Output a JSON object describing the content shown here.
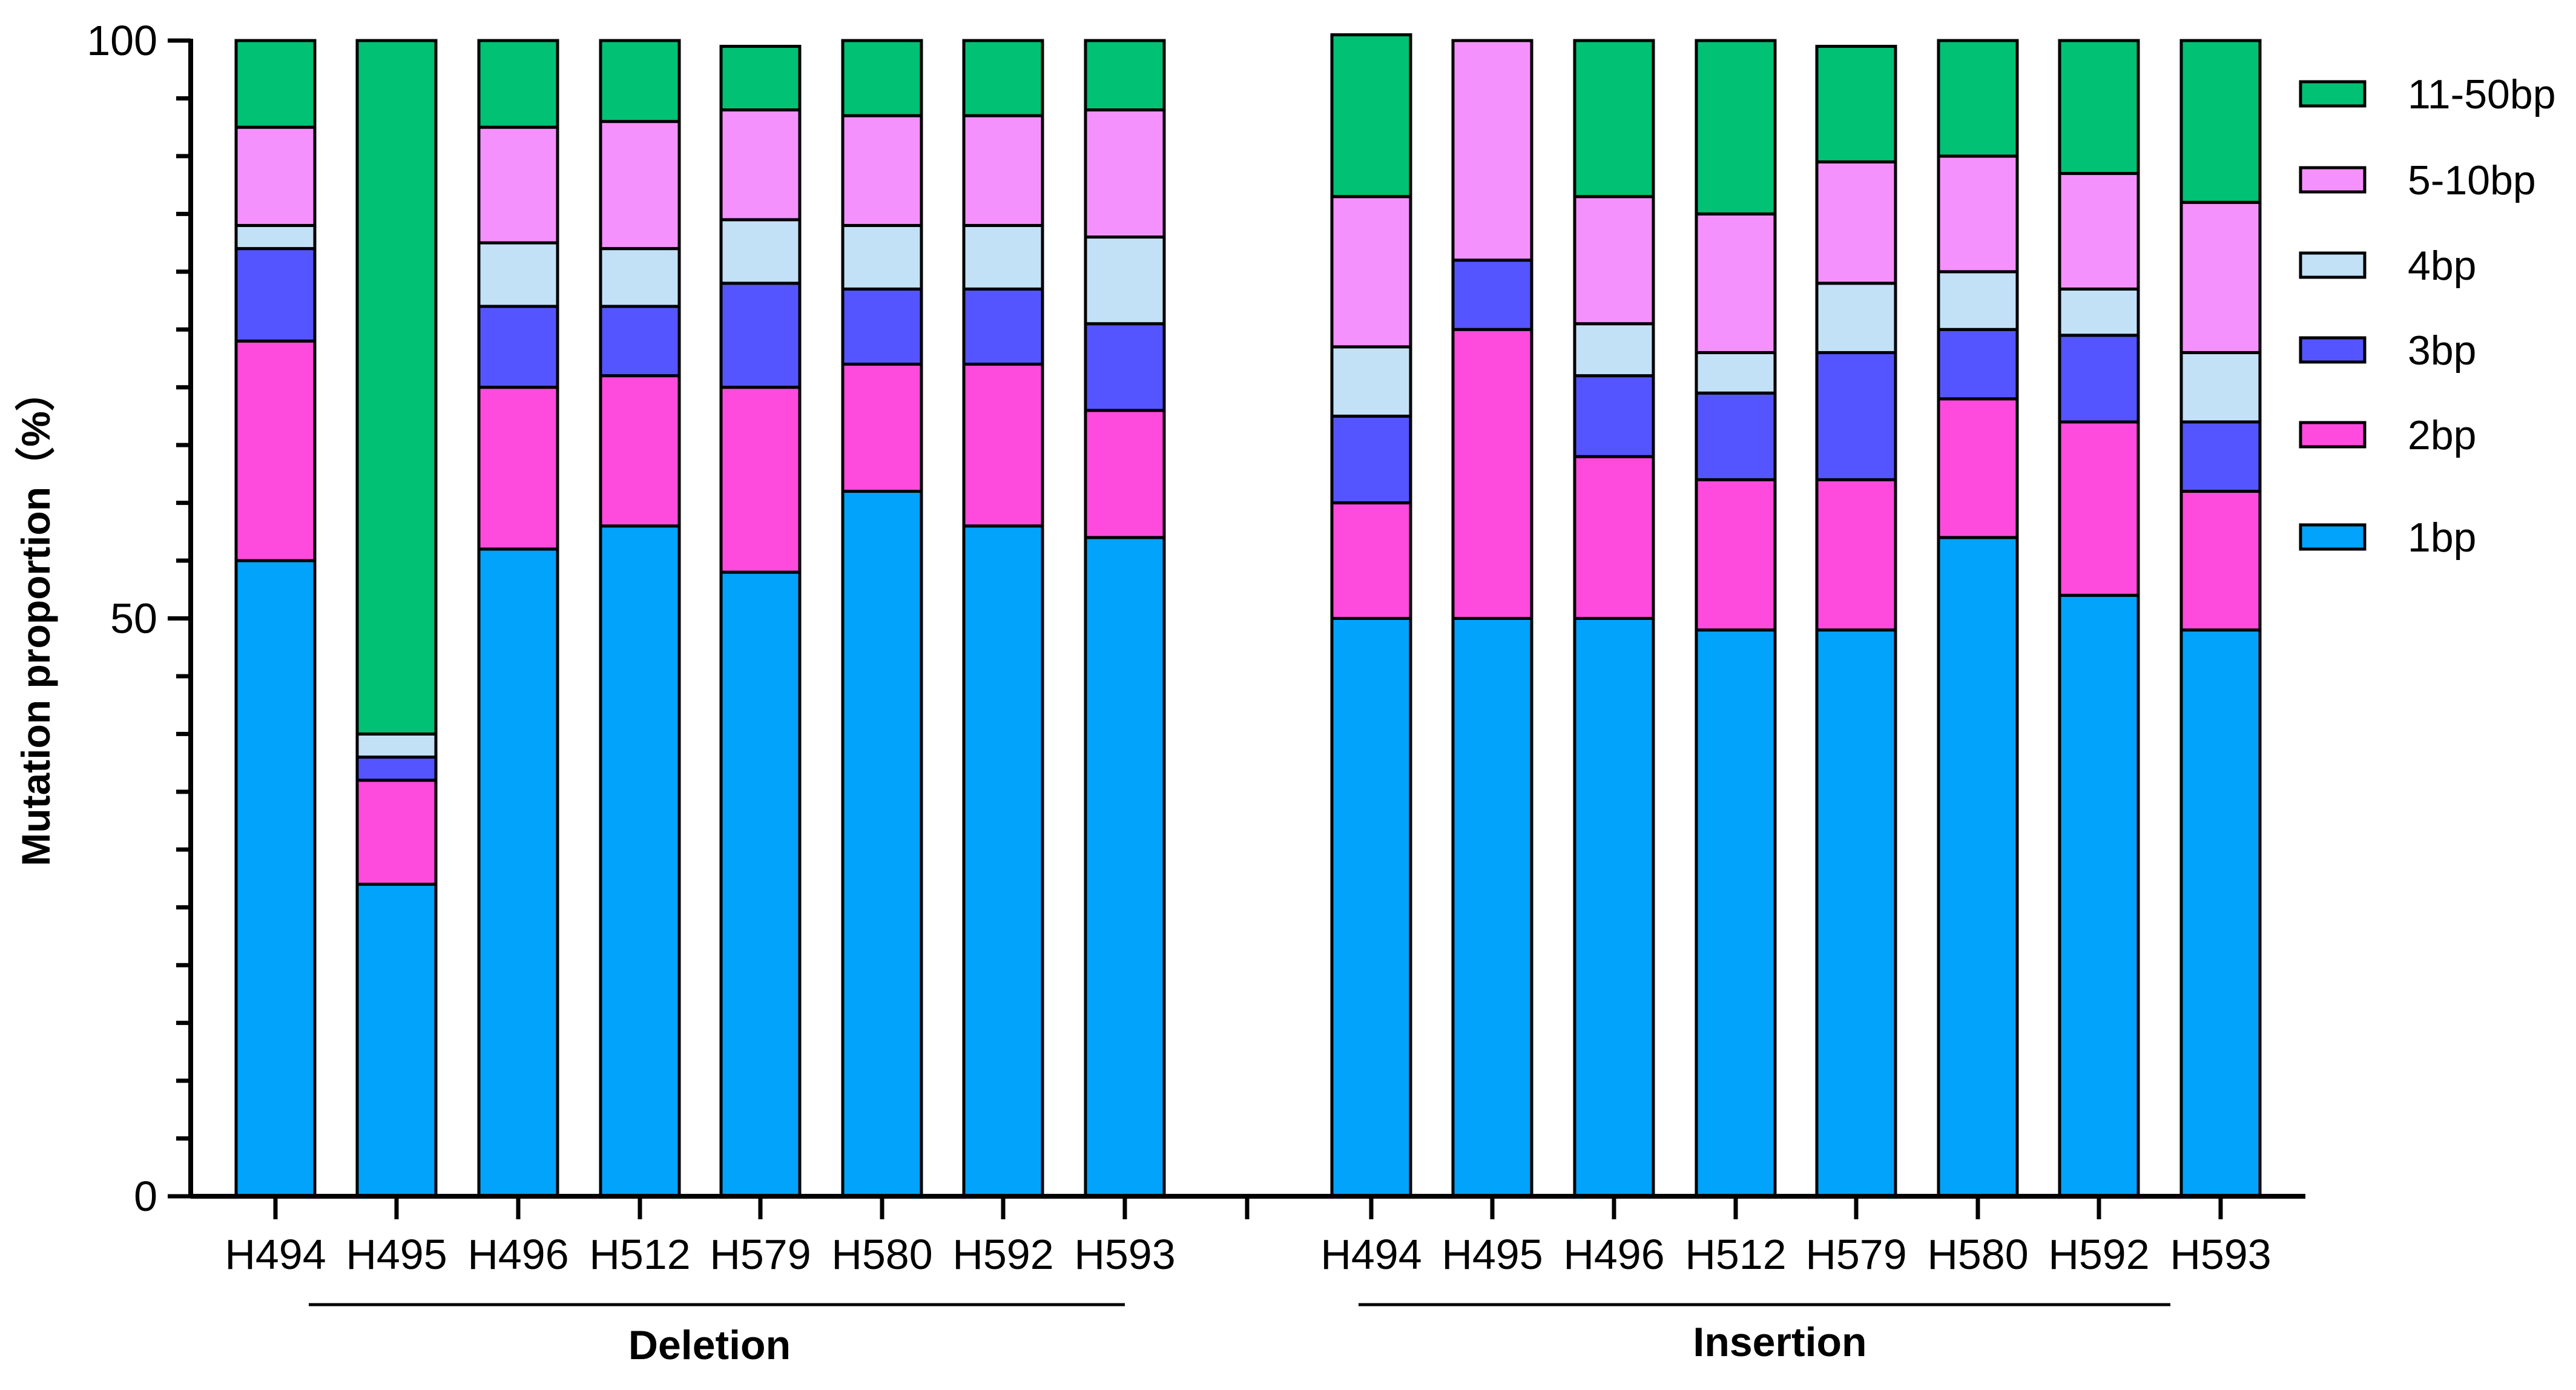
{
  "chart_data": {
    "type": "bar",
    "stacked": true,
    "title": "",
    "ylabel": "Mutation proportion（%）",
    "xlabel": "",
    "ylim": [
      0,
      100
    ],
    "yticks": [
      "0",
      "50",
      "100"
    ],
    "grid": false,
    "legend_position": "right",
    "groups": [
      {
        "label": "Deletion",
        "categories": [
          "H494",
          "H495",
          "H496",
          "H512",
          "H579",
          "H580",
          "H592",
          "H593"
        ]
      },
      {
        "label": "Insertion",
        "categories": [
          "H494",
          "H495",
          "H496",
          "H512",
          "H579",
          "H580",
          "H592",
          "H593"
        ]
      }
    ],
    "series": [
      {
        "name": "1bp",
        "color": "#02A3FA",
        "values": [
          55,
          27,
          56,
          58,
          54,
          61,
          58,
          57,
          50,
          50,
          50,
          49,
          49,
          57,
          52,
          49
        ]
      },
      {
        "name": "2bp",
        "color": "#FF4BDD",
        "values": [
          19,
          9,
          14,
          13,
          16,
          11,
          14,
          11,
          10,
          25,
          14,
          13,
          13,
          12,
          15,
          12
        ]
      },
      {
        "name": "3bp",
        "color": "#5555FF",
        "values": [
          8,
          2,
          7,
          6,
          9,
          6.5,
          6.5,
          7.5,
          7.5,
          6,
          7,
          7.5,
          11,
          6,
          7.5,
          6
        ]
      },
      {
        "name": "4bp",
        "color": "#C2E1F7",
        "values": [
          2,
          2,
          5.5,
          5,
          5.5,
          5.5,
          5.5,
          7.5,
          6,
          0,
          4.5,
          3.5,
          6,
          5,
          4,
          6
        ]
      },
      {
        "name": "5-10bp",
        "color": "#F591FC",
        "values": [
          8.5,
          0,
          10,
          11,
          9.5,
          9.5,
          9.5,
          11,
          13,
          19,
          11,
          12,
          10.5,
          10,
          10,
          13
        ]
      },
      {
        "name": "11-50bp",
        "color": "#00C174",
        "values": [
          7.5,
          60,
          7.5,
          7,
          5.5,
          6.5,
          6.5,
          6,
          14,
          0,
          13.5,
          15,
          10,
          10,
          11.5,
          14
        ]
      }
    ]
  }
}
